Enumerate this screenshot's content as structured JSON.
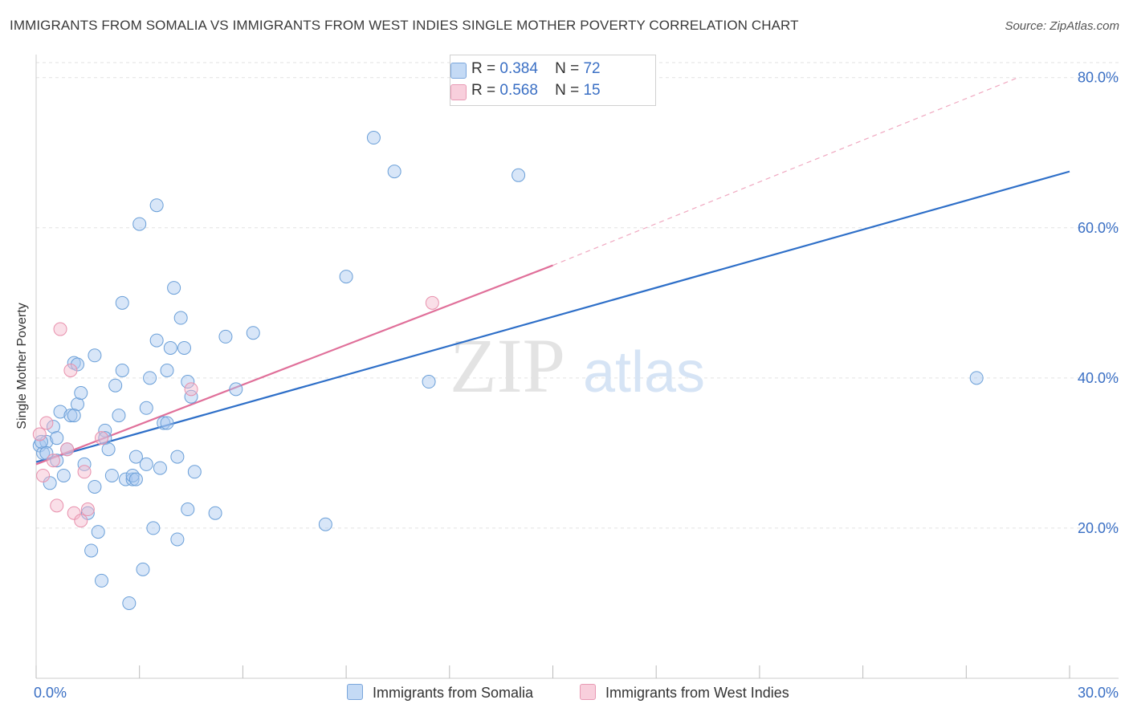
{
  "chart_data": {
    "type": "scatter",
    "title": "IMMIGRANTS FROM SOMALIA VS IMMIGRANTS FROM WEST INDIES SINGLE MOTHER POVERTY CORRELATION CHART",
    "source": "Source: ZipAtlas.com",
    "ylabel": "Single Mother Poverty",
    "xlabel": "",
    "xlim": [
      0,
      30
    ],
    "ylim": [
      0,
      82
    ],
    "x_tick_labels": [
      "0.0%",
      "30.0%"
    ],
    "y_ticks": [
      20,
      40,
      60,
      80
    ],
    "y_tick_labels": [
      "20.0%",
      "40.0%",
      "60.0%",
      "80.0%"
    ],
    "watermark": {
      "zip": "ZIP",
      "atlas": "atlas"
    },
    "legend": {
      "r_label": "R =",
      "n_label": "N =",
      "rows": [
        {
          "r": "0.384",
          "n": "72",
          "color": "#a8c8f0"
        },
        {
          "r": "0.568",
          "n": "15",
          "color": "#f5b8cc"
        }
      ]
    },
    "series": [
      {
        "name": "Immigrants from Somalia",
        "color": "#a8c8f0",
        "stroke": "#6a9fd8",
        "trend": {
          "x0": 0.0,
          "y0": 28.8,
          "x1": 30.0,
          "y1": 67.5,
          "color": "#2e6fc8"
        },
        "points": [
          [
            0.1,
            31.0
          ],
          [
            0.2,
            30.0
          ],
          [
            0.3,
            31.5
          ],
          [
            0.4,
            26.0
          ],
          [
            0.5,
            33.5
          ],
          [
            0.6,
            29.0
          ],
          [
            0.6,
            32.0
          ],
          [
            0.7,
            35.5
          ],
          [
            0.8,
            27.0
          ],
          [
            0.9,
            30.5
          ],
          [
            1.0,
            35.0
          ],
          [
            1.1,
            42.0
          ],
          [
            1.2,
            41.8
          ],
          [
            1.2,
            36.5
          ],
          [
            1.3,
            38.0
          ],
          [
            1.4,
            28.5
          ],
          [
            1.5,
            22.0
          ],
          [
            1.6,
            17.0
          ],
          [
            1.7,
            25.5
          ],
          [
            1.7,
            43.0
          ],
          [
            1.8,
            19.5
          ],
          [
            1.9,
            13.0
          ],
          [
            2.0,
            33.0
          ],
          [
            2.0,
            32.0
          ],
          [
            2.1,
            30.5
          ],
          [
            2.2,
            27.0
          ],
          [
            2.3,
            39.0
          ],
          [
            2.4,
            35.0
          ],
          [
            2.5,
            50.0
          ],
          [
            2.5,
            41.0
          ],
          [
            2.6,
            26.5
          ],
          [
            2.7,
            10.0
          ],
          [
            2.8,
            26.5
          ],
          [
            2.8,
            27.0
          ],
          [
            2.9,
            29.5
          ],
          [
            3.0,
            60.5
          ],
          [
            3.1,
            14.5
          ],
          [
            3.2,
            28.5
          ],
          [
            3.2,
            36.0
          ],
          [
            3.3,
            40.0
          ],
          [
            3.4,
            20.0
          ],
          [
            3.5,
            63.0
          ],
          [
            3.5,
            45.0
          ],
          [
            3.6,
            28.0
          ],
          [
            3.7,
            34.0
          ],
          [
            3.8,
            34.0
          ],
          [
            3.8,
            41.0
          ],
          [
            3.9,
            44.0
          ],
          [
            4.0,
            52.0
          ],
          [
            4.1,
            29.5
          ],
          [
            4.1,
            18.5
          ],
          [
            4.2,
            48.0
          ],
          [
            4.3,
            44.0
          ],
          [
            4.4,
            39.5
          ],
          [
            4.4,
            22.5
          ],
          [
            4.5,
            37.5
          ],
          [
            4.6,
            27.5
          ],
          [
            5.2,
            22.0
          ],
          [
            5.5,
            45.5
          ],
          [
            5.8,
            38.5
          ],
          [
            6.3,
            46.0
          ],
          [
            8.4,
            20.5
          ],
          [
            9.0,
            53.5
          ],
          [
            9.8,
            72.0
          ],
          [
            10.4,
            67.5
          ],
          [
            11.4,
            39.5
          ],
          [
            14.0,
            67.0
          ],
          [
            27.3,
            40.0
          ],
          [
            0.15,
            31.5
          ],
          [
            0.3,
            30.0
          ],
          [
            1.1,
            35.0
          ],
          [
            2.9,
            26.5
          ]
        ]
      },
      {
        "name": "Immigrants from West Indies",
        "color": "#f5b8cc",
        "stroke": "#e890ac",
        "trend": {
          "x0": 0.0,
          "y0": 28.5,
          "x1": 15.0,
          "y1": 55.0,
          "color": "#e0709a"
        },
        "trend_ext": {
          "x0": 15.0,
          "y0": 55.0,
          "x1": 28.5,
          "y1": 80.0
        },
        "points": [
          [
            0.1,
            32.5
          ],
          [
            0.2,
            27.0
          ],
          [
            0.3,
            34.0
          ],
          [
            0.5,
            29.0
          ],
          [
            0.6,
            23.0
          ],
          [
            0.7,
            46.5
          ],
          [
            0.9,
            30.5
          ],
          [
            1.0,
            41.0
          ],
          [
            1.1,
            22.0
          ],
          [
            1.3,
            21.0
          ],
          [
            1.4,
            27.5
          ],
          [
            1.5,
            22.5
          ],
          [
            1.9,
            32.0
          ],
          [
            4.5,
            38.5
          ],
          [
            11.5,
            50.0
          ]
        ]
      }
    ]
  }
}
